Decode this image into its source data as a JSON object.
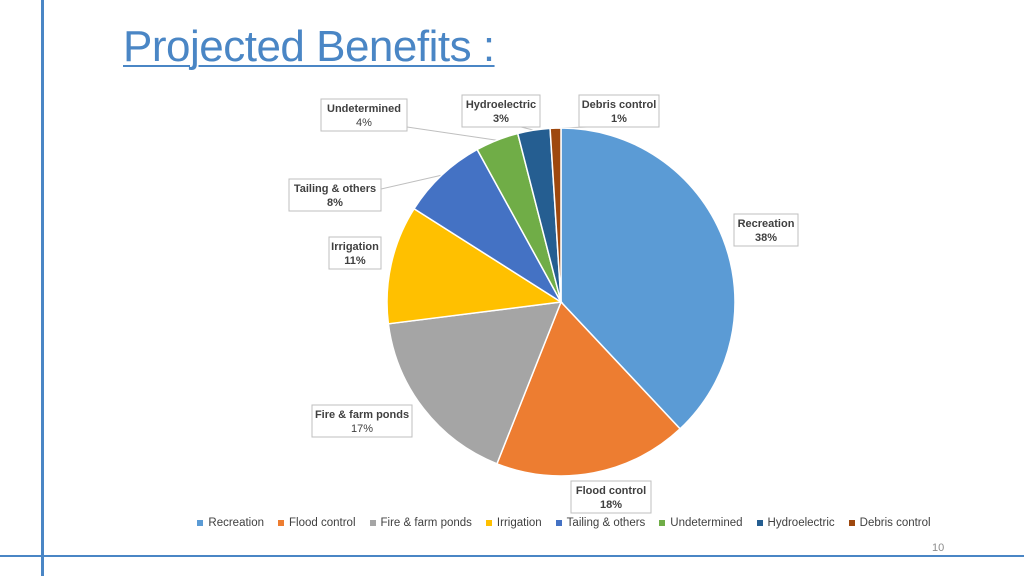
{
  "slide": {
    "title": "Projected Benefits :",
    "page_number": "10",
    "accent_color": "#4a86c5"
  },
  "chart_data": {
    "type": "pie",
    "title": "",
    "legend_position": "bottom",
    "slices": [
      {
        "label": "Recreation",
        "value": 38,
        "value_label": "38%",
        "color": "#5b9bd5",
        "label_bold": true
      },
      {
        "label": "Flood control",
        "value": 18,
        "value_label": "18%",
        "color": "#ed7d31",
        "label_bold": true
      },
      {
        "label": "Fire & farm ponds",
        "value": 17,
        "value_label": "17%",
        "color": "#a5a5a5",
        "label_bold": true
      },
      {
        "label": "Irrigation",
        "value": 11,
        "value_label": "11%",
        "color": "#ffc000",
        "label_bold": true
      },
      {
        "label": "Tailing & others",
        "value": 8,
        "value_label": "8%",
        "color": "#4472c4",
        "label_bold": true
      },
      {
        "label": "Undetermined",
        "value": 4,
        "value_label": "4%",
        "color": "#70ad47",
        "label_bold": true
      },
      {
        "label": "Hydroelectric",
        "value": 3,
        "value_label": "3%",
        "color": "#255e91",
        "label_bold": true
      },
      {
        "label": "Debris control",
        "value": 1,
        "value_label": "1%",
        "color": "#9e480e",
        "label_bold": true
      }
    ]
  }
}
